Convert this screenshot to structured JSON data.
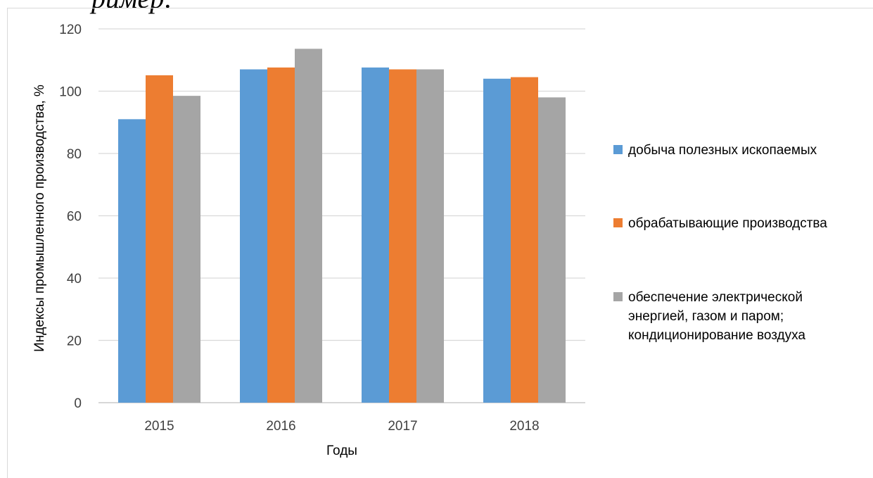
{
  "fragment_text": "ример:",
  "colors": {
    "series1": "#5b9bd5",
    "series2": "#ed7d31",
    "series3": "#a5a5a5",
    "grid": "#d9d9d9",
    "axis": "#bfbfbf"
  },
  "chart_data": {
    "type": "bar",
    "title": "",
    "xlabel": "Годы",
    "ylabel": "Индексы промышленного производства, %",
    "categories": [
      "2015",
      "2016",
      "2017",
      "2018"
    ],
    "ylim": [
      0,
      120
    ],
    "yticks": [
      "0",
      "20",
      "40",
      "60",
      "80",
      "100",
      "120"
    ],
    "grid": true,
    "legend_position": "right",
    "series": [
      {
        "name": "добыча полезных ископаемых",
        "values": [
          91,
          107,
          107.6,
          104
        ]
      },
      {
        "name": "обрабатывающие производства",
        "values": [
          105.1,
          107.6,
          107,
          104.5
        ]
      },
      {
        "name": "обеспечение электрической энергией, газом и паром; кондиционирование воздуха",
        "values": [
          98.5,
          113.6,
          107,
          98
        ]
      }
    ]
  }
}
